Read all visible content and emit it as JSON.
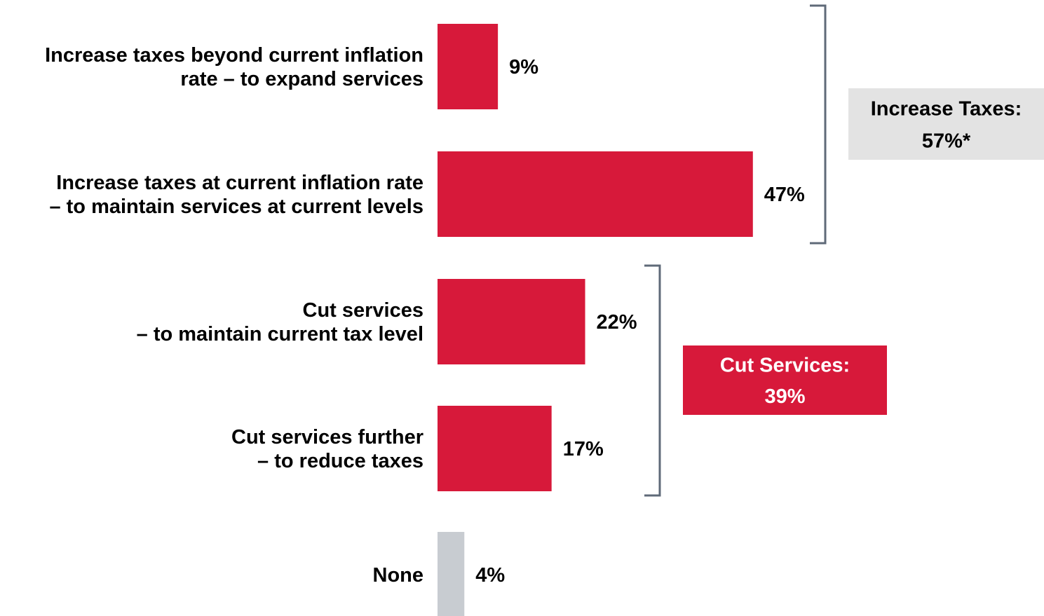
{
  "chart_data": {
    "type": "bar",
    "orientation": "horizontal",
    "categories": [
      [
        "Increase taxes beyond current inflation",
        "rate – to expand services"
      ],
      [
        "Increase taxes at current inflation rate",
        "– to maintain services at current levels"
      ],
      [
        "Cut services",
        "– to maintain current tax level"
      ],
      [
        "Cut services further",
        "– to reduce taxes"
      ],
      [
        "None"
      ]
    ],
    "values": [
      9,
      47,
      22,
      17,
      4
    ],
    "value_labels": [
      "9%",
      "47%",
      "22%",
      "17%",
      "4%"
    ],
    "bar_colors": [
      "#d7193a",
      "#d7193a",
      "#d7193a",
      "#d7193a",
      "#c8ccd1"
    ],
    "xlim": [
      0,
      100
    ],
    "grid": false,
    "groups": [
      {
        "name": "increase-taxes",
        "line1": "Increase Taxes:",
        "line2": "57%*",
        "members": [
          0,
          1
        ],
        "box_color": "#e3e3e3",
        "text_color": "#000000"
      },
      {
        "name": "cut-services",
        "line1": "Cut Services:",
        "line2": "39%",
        "members": [
          2,
          3
        ],
        "box_color": "#d7193a",
        "text_color": "#ffffff"
      }
    ]
  },
  "colors": {
    "bracket": "#5f6a78"
  }
}
